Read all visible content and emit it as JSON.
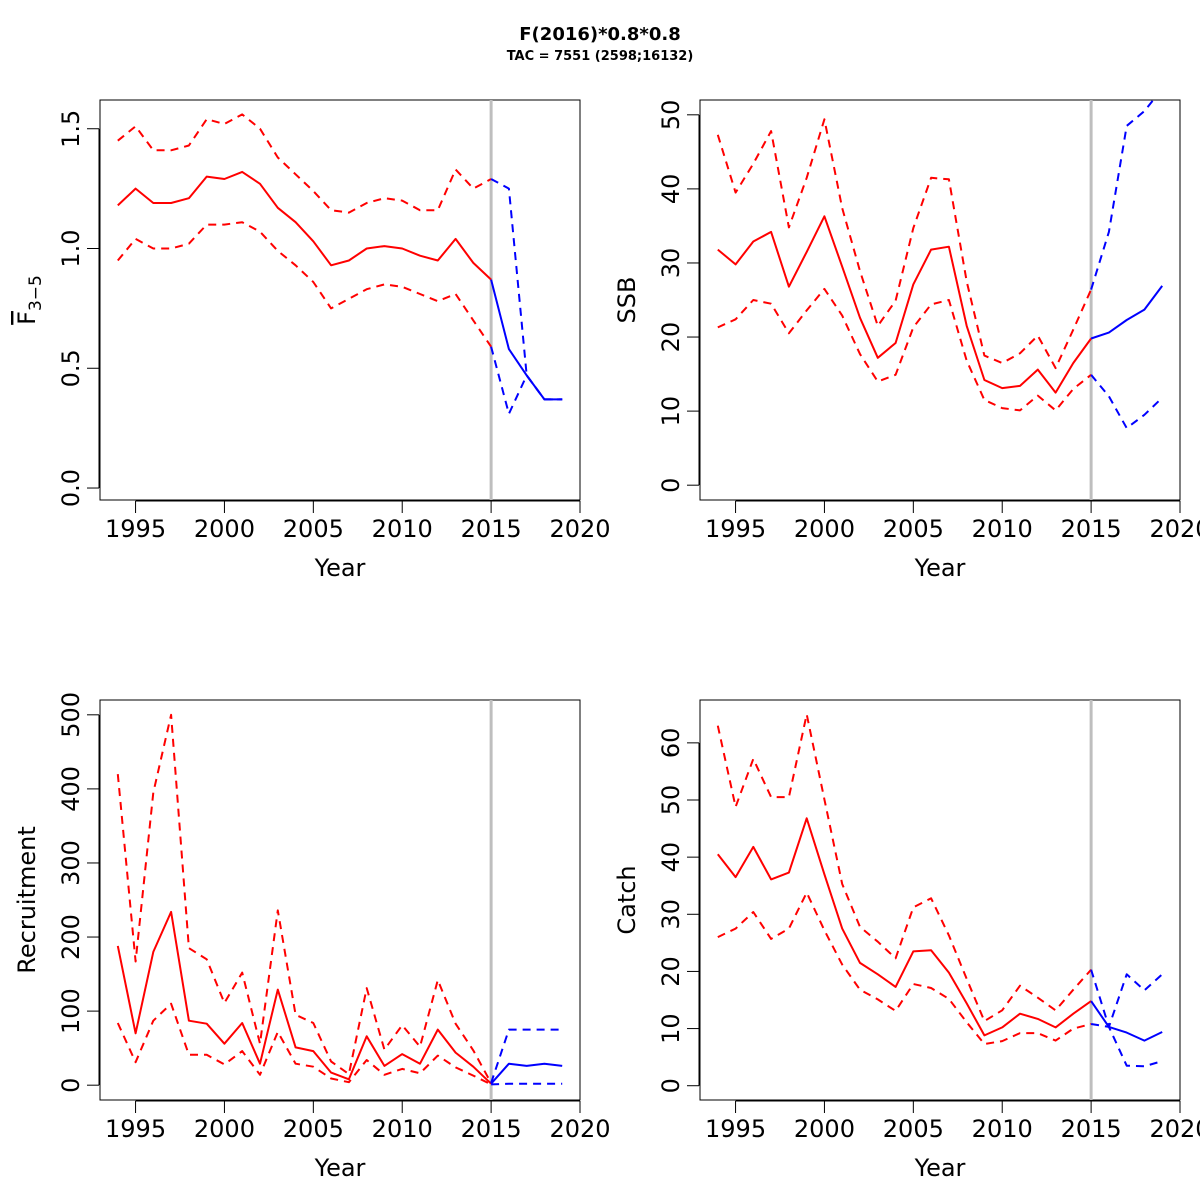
{
  "figure": {
    "title": "F(2016)*0.8*0.8",
    "subtitle": "TAC = 7551 (2598;16132)"
  },
  "chart_data": [
    {
      "type": "line",
      "ylabel": "F̅₃₋₅",
      "ylabel_main": "F",
      "ylabel_sub": "3−5",
      "xlabel": "Year",
      "xlim": [
        1993,
        2020
      ],
      "ylim": [
        -0.05,
        1.62
      ],
      "xticks": [
        1995,
        2000,
        2005,
        2010,
        2015,
        2020
      ],
      "yticks": [
        0.0,
        0.5,
        1.0,
        1.5
      ],
      "ytick_labels": [
        "0.0",
        "0.5",
        "1.0",
        "1.5"
      ],
      "ref_year": 2015,
      "series": [
        {
          "role": "hist-mid",
          "x": [
            1994,
            1995,
            1996,
            1997,
            1998,
            1999,
            2000,
            2001,
            2002,
            2003,
            2004,
            2005,
            2006,
            2007,
            2008,
            2009,
            2010,
            2011,
            2012,
            2013,
            2014,
            2015
          ],
          "y": [
            1.18,
            1.25,
            1.19,
            1.19,
            1.21,
            1.3,
            1.29,
            1.32,
            1.27,
            1.17,
            1.11,
            1.03,
            0.93,
            0.95,
            1.0,
            1.01,
            1.0,
            0.97,
            0.95,
            1.04,
            0.94,
            0.87
          ]
        },
        {
          "role": "hist-upper",
          "x": [
            1994,
            1995,
            1996,
            1997,
            1998,
            1999,
            2000,
            2001,
            2002,
            2003,
            2004,
            2005,
            2006,
            2007,
            2008,
            2009,
            2010,
            2011,
            2012,
            2013,
            2014,
            2015
          ],
          "y": [
            1.45,
            1.51,
            1.41,
            1.41,
            1.43,
            1.54,
            1.52,
            1.56,
            1.5,
            1.38,
            1.31,
            1.24,
            1.16,
            1.15,
            1.19,
            1.21,
            1.2,
            1.16,
            1.16,
            1.33,
            1.25,
            1.29
          ]
        },
        {
          "role": "hist-lower",
          "x": [
            1994,
            1995,
            1996,
            1997,
            1998,
            1999,
            2000,
            2001,
            2002,
            2003,
            2004,
            2005,
            2006,
            2007,
            2008,
            2009,
            2010,
            2011,
            2012,
            2013,
            2014,
            2015
          ],
          "y": [
            0.95,
            1.04,
            1.0,
            1.0,
            1.02,
            1.1,
            1.1,
            1.11,
            1.07,
            0.99,
            0.93,
            0.86,
            0.75,
            0.79,
            0.83,
            0.85,
            0.84,
            0.81,
            0.78,
            0.81,
            0.7,
            0.59
          ]
        },
        {
          "role": "proj-mid",
          "x": [
            2015,
            2016,
            2017,
            2018,
            2019
          ],
          "y": [
            0.87,
            0.58,
            0.47,
            0.37,
            0.37
          ]
        },
        {
          "role": "proj-upper",
          "x": [
            2015,
            2016,
            2017,
            2018,
            2019
          ],
          "y": [
            1.29,
            1.25,
            0.47,
            0.37,
            0.37
          ]
        },
        {
          "role": "proj-lower",
          "x": [
            2015,
            2016,
            2017,
            2018,
            2019
          ],
          "y": [
            0.59,
            0.31,
            0.47,
            0.37,
            0.37
          ]
        }
      ]
    },
    {
      "type": "line",
      "ylabel": "SSB",
      "xlabel": "Year",
      "xlim": [
        1993,
        2020
      ],
      "ylim": [
        -2,
        52
      ],
      "xticks": [
        1995,
        2000,
        2005,
        2010,
        2015,
        2020
      ],
      "yticks": [
        0,
        10,
        20,
        30,
        40,
        50
      ],
      "ytick_labels": [
        "0",
        "10",
        "20",
        "30",
        "40",
        "50"
      ],
      "ref_year": 2015,
      "series": [
        {
          "role": "hist-mid",
          "x": [
            1994,
            1995,
            1996,
            1997,
            1998,
            1999,
            2000,
            2001,
            2002,
            2003,
            2004,
            2005,
            2006,
            2007,
            2008,
            2009,
            2010,
            2011,
            2012,
            2013,
            2014,
            2015
          ],
          "y": [
            31.8,
            29.8,
            32.9,
            34.2,
            26.8,
            31.5,
            36.3,
            29.5,
            22.6,
            17.2,
            19.2,
            27.1,
            31.8,
            32.2,
            21.5,
            14.2,
            13.1,
            13.4,
            15.6,
            12.5,
            16.5,
            19.8
          ]
        },
        {
          "role": "hist-upper",
          "x": [
            1994,
            1995,
            1996,
            1997,
            1998,
            1999,
            2000,
            2001,
            2002,
            2003,
            2004,
            2005,
            2006,
            2007,
            2008,
            2009,
            2010,
            2011,
            2012,
            2013,
            2014,
            2015
          ],
          "y": [
            47.3,
            39.5,
            43.4,
            47.8,
            34.8,
            41.5,
            49.4,
            37.4,
            28.9,
            21.5,
            24.9,
            34.7,
            41.5,
            41.3,
            27.5,
            17.5,
            16.5,
            17.8,
            20.2,
            15.8,
            21.0,
            26.4
          ]
        },
        {
          "role": "hist-lower",
          "x": [
            1994,
            1995,
            1996,
            1997,
            1998,
            1999,
            2000,
            2001,
            2002,
            2003,
            2004,
            2005,
            2006,
            2007,
            2008,
            2009,
            2010,
            2011,
            2012,
            2013,
            2014,
            2015
          ],
          "y": [
            21.3,
            22.4,
            25.0,
            24.5,
            20.5,
            23.6,
            26.5,
            22.9,
            17.7,
            14.0,
            14.9,
            21.3,
            24.4,
            25.0,
            16.8,
            11.5,
            10.4,
            10.1,
            12.1,
            10.1,
            13.0,
            14.9
          ]
        },
        {
          "role": "proj-mid",
          "x": [
            2015,
            2016,
            2017,
            2018,
            2019
          ],
          "y": [
            19.8,
            20.6,
            22.3,
            23.7,
            26.9
          ]
        },
        {
          "role": "proj-upper",
          "x": [
            2015,
            2016,
            2017,
            2018,
            2019
          ],
          "y": [
            26.4,
            34.2,
            48.5,
            50.5,
            53.5
          ]
        },
        {
          "role": "proj-lower",
          "x": [
            2015,
            2016,
            2017,
            2018,
            2019
          ],
          "y": [
            14.9,
            12.0,
            7.7,
            9.5,
            11.8
          ]
        }
      ]
    },
    {
      "type": "line",
      "ylabel": "Recruitment",
      "xlabel": "Year",
      "xlim": [
        1993,
        2020
      ],
      "ylim": [
        -20,
        520
      ],
      "xticks": [
        1995,
        2000,
        2005,
        2010,
        2015,
        2020
      ],
      "yticks": [
        0,
        100,
        200,
        300,
        400,
        500
      ],
      "ytick_labels": [
        "0",
        "100",
        "200",
        "300",
        "400",
        "500"
      ],
      "ref_year": 2015,
      "series": [
        {
          "role": "hist-mid",
          "x": [
            1994,
            1995,
            1996,
            1997,
            1998,
            1999,
            2000,
            2001,
            2002,
            2003,
            2004,
            2005,
            2006,
            2007,
            2008,
            2009,
            2010,
            2011,
            2012,
            2013,
            2014,
            2015
          ],
          "y": [
            188,
            70,
            180,
            234,
            87,
            83,
            56,
            84,
            29,
            129,
            51,
            46,
            17,
            8,
            66,
            26,
            42,
            29,
            75,
            44,
            25,
            2
          ]
        },
        {
          "role": "hist-upper",
          "x": [
            1994,
            1995,
            1996,
            1997,
            1998,
            1999,
            2000,
            2001,
            2002,
            2003,
            2004,
            2005,
            2006,
            2007,
            2008,
            2009,
            2010,
            2011,
            2012,
            2013,
            2014,
            2015
          ],
          "y": [
            420,
            167,
            395,
            500,
            185,
            170,
            111,
            152,
            56,
            236,
            95,
            84,
            32,
            15,
            131,
            48,
            81,
            52,
            142,
            83,
            47,
            3
          ]
        },
        {
          "role": "hist-lower",
          "x": [
            1994,
            1995,
            1996,
            1997,
            1998,
            1999,
            2000,
            2001,
            2002,
            2003,
            2004,
            2005,
            2006,
            2007,
            2008,
            2009,
            2010,
            2011,
            2012,
            2013,
            2014,
            2015
          ],
          "y": [
            84,
            31,
            87,
            110,
            41,
            41,
            28,
            46,
            14,
            72,
            29,
            25,
            9,
            4,
            34,
            14,
            22,
            16,
            40,
            24,
            13,
            1
          ]
        },
        {
          "role": "proj-mid",
          "x": [
            2015,
            2016,
            2017,
            2018,
            2019
          ],
          "y": [
            2,
            29,
            26,
            29,
            26
          ]
        },
        {
          "role": "proj-upper",
          "x": [
            2015,
            2016,
            2017,
            2018,
            2019
          ],
          "y": [
            3,
            75,
            75,
            75,
            75
          ]
        },
        {
          "role": "proj-lower",
          "x": [
            2015,
            2016,
            2017,
            2018,
            2019
          ],
          "y": [
            1,
            2,
            2,
            2,
            2
          ]
        }
      ]
    },
    {
      "type": "line",
      "ylabel": "Catch",
      "xlabel": "Year",
      "xlim": [
        1993,
        2020
      ],
      "ylim": [
        -2.5,
        67.5
      ],
      "xticks": [
        1995,
        2000,
        2005,
        2010,
        2015,
        2020
      ],
      "yticks": [
        0,
        10,
        20,
        30,
        40,
        50,
        60
      ],
      "ytick_labels": [
        "0",
        "10",
        "20",
        "30",
        "40",
        "50",
        "60"
      ],
      "ref_year": 2015,
      "series": [
        {
          "role": "hist-mid",
          "x": [
            1994,
            1995,
            1996,
            1997,
            1998,
            1999,
            2000,
            2001,
            2002,
            2003,
            2004,
            2005,
            2006,
            2007,
            2008,
            2009,
            2010,
            2011,
            2012,
            2013,
            2014,
            2015
          ],
          "y": [
            40.5,
            36.5,
            41.8,
            36.1,
            37.3,
            46.8,
            37.0,
            27.5,
            21.5,
            19.5,
            17.3,
            23.5,
            23.7,
            19.8,
            14.4,
            8.8,
            10.2,
            12.6,
            11.7,
            10.2,
            12.6,
            14.8
          ]
        },
        {
          "role": "hist-upper",
          "x": [
            1994,
            1995,
            1996,
            1997,
            1998,
            1999,
            2000,
            2001,
            2002,
            2003,
            2004,
            2005,
            2006,
            2007,
            2008,
            2009,
            2010,
            2011,
            2012,
            2013,
            2014,
            2015
          ],
          "y": [
            63.0,
            48.8,
            57.2,
            50.5,
            50.5,
            65.0,
            50.1,
            35.3,
            27.8,
            25.2,
            22.3,
            31.2,
            32.8,
            26.3,
            18.7,
            11.3,
            13.2,
            17.5,
            15.4,
            13.2,
            16.8,
            20.3
          ]
        },
        {
          "role": "hist-lower",
          "x": [
            1994,
            1995,
            1996,
            1997,
            1998,
            1999,
            2000,
            2001,
            2002,
            2003,
            2004,
            2005,
            2006,
            2007,
            2008,
            2009,
            2010,
            2011,
            2012,
            2013,
            2014,
            2015
          ],
          "y": [
            26.0,
            27.5,
            30.4,
            25.7,
            27.5,
            33.8,
            27.2,
            21.2,
            16.8,
            15.1,
            13.1,
            17.8,
            17.1,
            15.2,
            11.1,
            7.3,
            7.8,
            9.2,
            9.2,
            7.9,
            10.0,
            10.8
          ]
        },
        {
          "role": "proj-mid",
          "x": [
            2015,
            2016,
            2017,
            2018,
            2019
          ],
          "y": [
            14.8,
            10.3,
            9.3,
            7.9,
            9.4
          ]
        },
        {
          "role": "proj-upper",
          "x": [
            2015,
            2016,
            2017,
            2018,
            2019
          ],
          "y": [
            20.3,
            10.3,
            19.5,
            16.7,
            19.5
          ]
        },
        {
          "role": "proj-lower",
          "x": [
            2015,
            2016,
            2017,
            2018,
            2019
          ],
          "y": [
            10.8,
            10.3,
            3.5,
            3.4,
            4.3
          ]
        }
      ]
    }
  ],
  "colors": {
    "historical": "#ff0000",
    "projection": "#0000ff",
    "ref_line": "#bebebe"
  }
}
